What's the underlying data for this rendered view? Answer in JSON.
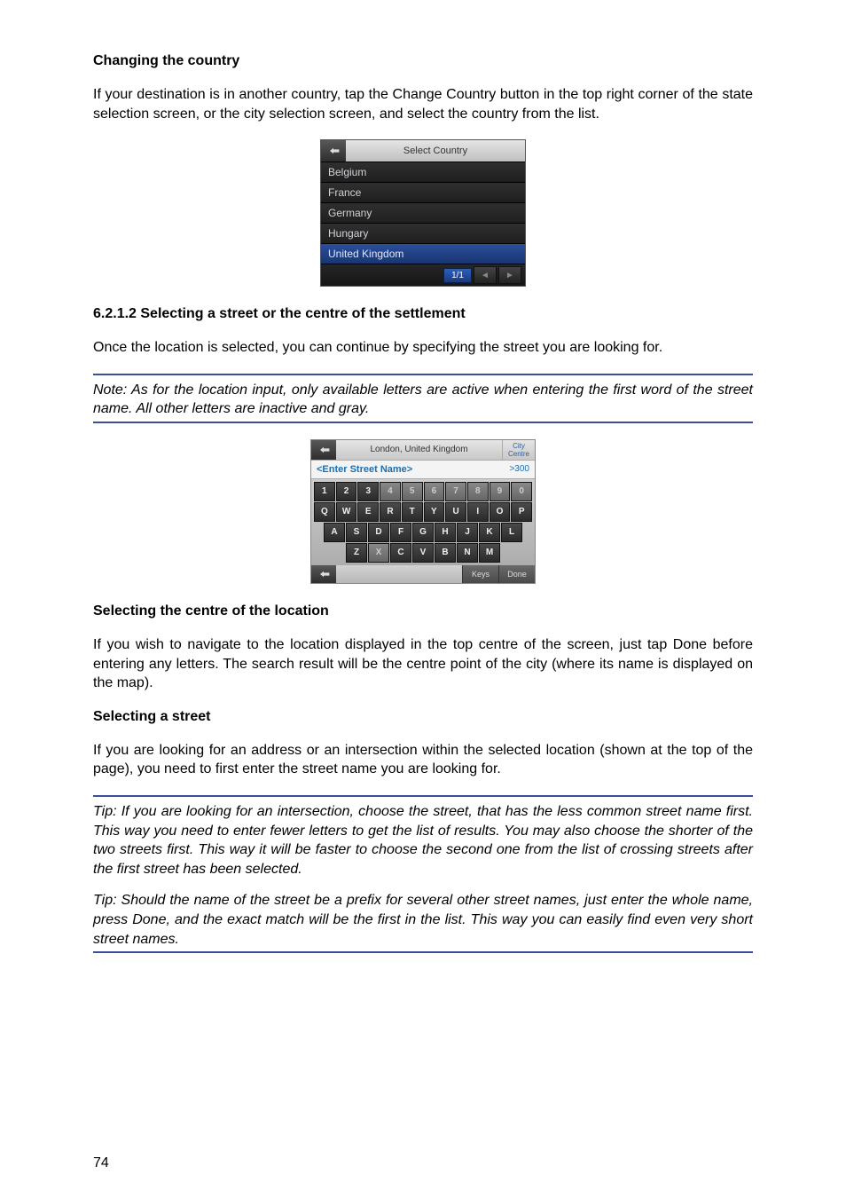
{
  "heading_change_country": "Changing the country",
  "para_change_country": "If your destination is in another country, tap the Change Country button in the top right corner of the state selection screen, or the city selection screen, and select the country from the list.",
  "country_list": {
    "header": "Select Country",
    "rows": [
      "Belgium",
      "France",
      "Germany",
      "Hungary",
      "United Kingdom"
    ],
    "selected_index": 4,
    "page_indicator": "1/1"
  },
  "heading_select_street": "6.2.1.2  Selecting a street or the centre of the settlement",
  "para_select_street": "Once the location is selected, you can continue by specifying the street you are looking for.",
  "note_letters": "Note: As for the location input, only available letters are active when entering the first word of the street name. All other letters are inactive and gray.",
  "keyboard": {
    "title": "London, United Kingdom",
    "city_button": "City\nCentre",
    "placeholder": "<Enter Street Name>",
    "result_count": ">300",
    "row1": [
      {
        "l": "1",
        "dim": false
      },
      {
        "l": "2",
        "dim": false
      },
      {
        "l": "3",
        "dim": false
      },
      {
        "l": "4",
        "dim": true
      },
      {
        "l": "5",
        "dim": true
      },
      {
        "l": "6",
        "dim": true
      },
      {
        "l": "7",
        "dim": true
      },
      {
        "l": "8",
        "dim": true
      },
      {
        "l": "9",
        "dim": true
      },
      {
        "l": "0",
        "dim": true
      }
    ],
    "row2": [
      {
        "l": "Q",
        "dim": false
      },
      {
        "l": "W",
        "dim": false
      },
      {
        "l": "E",
        "dim": false
      },
      {
        "l": "R",
        "dim": false
      },
      {
        "l": "T",
        "dim": false
      },
      {
        "l": "Y",
        "dim": false
      },
      {
        "l": "U",
        "dim": false
      },
      {
        "l": "I",
        "dim": false
      },
      {
        "l": "O",
        "dim": false
      },
      {
        "l": "P",
        "dim": false
      }
    ],
    "row3": [
      {
        "l": "A",
        "dim": false
      },
      {
        "l": "S",
        "dim": false
      },
      {
        "l": "D",
        "dim": false
      },
      {
        "l": "F",
        "dim": false
      },
      {
        "l": "G",
        "dim": false
      },
      {
        "l": "H",
        "dim": false
      },
      {
        "l": "J",
        "dim": false
      },
      {
        "l": "K",
        "dim": false
      },
      {
        "l": "L",
        "dim": false
      }
    ],
    "row4": [
      {
        "l": "Z",
        "dim": false
      },
      {
        "l": "X",
        "dim": true
      },
      {
        "l": "C",
        "dim": false
      },
      {
        "l": "V",
        "dim": false
      },
      {
        "l": "B",
        "dim": false
      },
      {
        "l": "N",
        "dim": false
      },
      {
        "l": "M",
        "dim": false
      }
    ],
    "keys_btn": "Keys",
    "done_btn": "Done"
  },
  "heading_select_centre": "Selecting the centre of the location",
  "para_select_centre": "If you wish to navigate to the location displayed in the top centre of the screen, just tap Done before entering any letters. The search result will be the centre point of the city (where its name is displayed on the map).",
  "heading_select_a_street": "Selecting a street",
  "para_select_a_street": "If you are looking for an address or an intersection within the selected location (shown at the top of the page), you need to first enter the street name you are looking for.",
  "tip1": "Tip: If you are looking for an intersection, choose the street, that has the less common street name first. This way you need to enter fewer letters to get the list of results. You may also choose the shorter of the two streets first. This way it will be faster to choose the second one from the list of crossing streets after the first street has been selected.",
  "tip2": "Tip: Should the name of the street be a prefix for several other street names, just enter the whole name, press Done, and the exact match will be the first in the list. This way you can easily find even very short street names.",
  "page_number": "74"
}
